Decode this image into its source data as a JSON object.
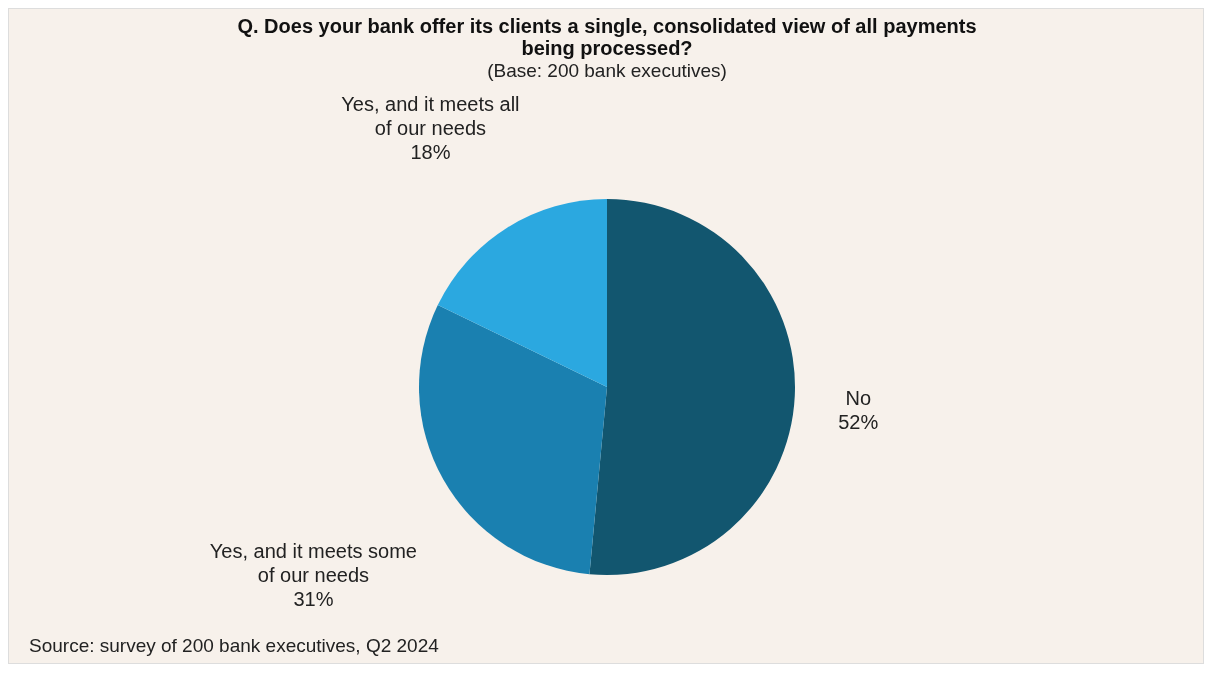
{
  "chart_data": {
    "type": "pie",
    "title": "Q. Does your bank offer its clients a single, consolidated view of all payments being processed?",
    "subtitle": "(Base: 200 bank executives)",
    "categories": [
      "No",
      "Yes, and it meets some of our needs",
      "Yes, and it meets all of our needs"
    ],
    "values": [
      52,
      31,
      18
    ],
    "value_labels": [
      "52%",
      "31%",
      "18%"
    ],
    "colors": [
      "#12566f",
      "#1a80b0",
      "#2ba8e0"
    ],
    "annotations": [
      "Source: survey of 200 bank executives, Q2 2024"
    ]
  }
}
